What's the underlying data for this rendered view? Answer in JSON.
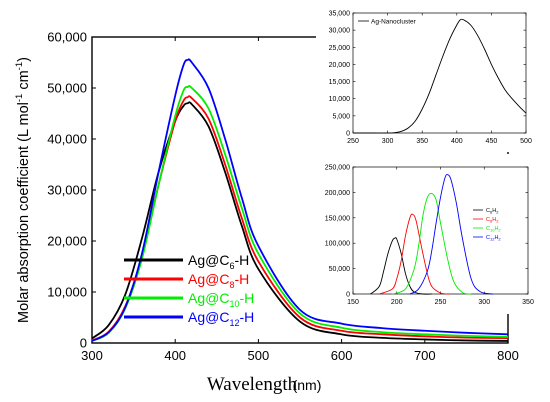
{
  "chart_data": [
    {
      "type": "line",
      "xlabel": "Wavelength",
      "xunit": "(nm)",
      "ylabel_parts": [
        "Molar absorption coefficient (L mol",
        "-1",
        " cm",
        "-1",
        ")"
      ],
      "xlim": [
        300,
        800
      ],
      "ylim": [
        0,
        60000
      ],
      "xticks": [
        "300",
        "400",
        "500",
        "600",
        "700",
        "800"
      ],
      "yticks": [
        "0",
        "10,000",
        "20,000",
        "30,000",
        "40,000",
        "50,000",
        "60,000"
      ],
      "legend": "bottom-left",
      "series": [
        {
          "name": "Ag@C6-H",
          "label_base": "Ag@C",
          "label_sub": "6",
          "label_suffix": "-H",
          "color": "#000000",
          "x": [
            300,
            320,
            340,
            360,
            380,
            400,
            410,
            415,
            420,
            440,
            460,
            480,
            500,
            550,
            600,
            650,
            700,
            750,
            800
          ],
          "y": [
            900,
            3500,
            9500,
            20500,
            33500,
            43500,
            46500,
            47000,
            46800,
            42500,
            33500,
            23000,
            14500,
            4200,
            1700,
            1000,
            700,
            500,
            400
          ]
        },
        {
          "name": "Ag@C8-H",
          "label_base": "Ag@C",
          "label_sub": "8",
          "label_suffix": "-H",
          "color": "#ff0000",
          "x": [
            300,
            320,
            340,
            360,
            380,
            400,
            410,
            415,
            420,
            440,
            460,
            480,
            500,
            550,
            600,
            650,
            700,
            750,
            800
          ],
          "y": [
            500,
            2200,
            7200,
            17000,
            31000,
            43500,
            47500,
            48200,
            48000,
            44000,
            35000,
            24500,
            16000,
            5000,
            2400,
            1700,
            1300,
            1050,
            950
          ]
        },
        {
          "name": "Ag@C10-H",
          "label_base": "Ag@C",
          "label_sub": "10",
          "label_suffix": "-H",
          "color": "#00ee00",
          "x": [
            300,
            320,
            340,
            360,
            380,
            400,
            410,
            415,
            420,
            440,
            460,
            480,
            500,
            550,
            600,
            650,
            700,
            750,
            800
          ],
          "y": [
            400,
            2000,
            6800,
            16500,
            31000,
            44500,
            49500,
            50200,
            50000,
            46000,
            37000,
            26500,
            17500,
            5800,
            3000,
            2100,
            1700,
            1400,
            1200
          ]
        },
        {
          "name": "Ag@C12-H",
          "label_base": "Ag@C",
          "label_sub": "12",
          "label_suffix": "-H",
          "color": "#0000ff",
          "x": [
            300,
            320,
            340,
            360,
            380,
            400,
            410,
            415,
            420,
            440,
            460,
            480,
            500,
            550,
            600,
            650,
            700,
            750,
            800
          ],
          "y": [
            400,
            2100,
            7000,
            17500,
            33500,
            48500,
            54500,
            55500,
            55000,
            50000,
            40000,
            28500,
            19000,
            6500,
            3800,
            2900,
            2400,
            2000,
            1700
          ]
        }
      ]
    },
    {
      "type": "line",
      "xlim": [
        250,
        500
      ],
      "ylim": [
        0,
        35000
      ],
      "xticks": [
        "250",
        "300",
        "350",
        "400",
        "450",
        "500"
      ],
      "yticks": [
        "0",
        "5,000",
        "10,000",
        "15,000",
        "20,000",
        "25,000",
        "30,000",
        "35,000"
      ],
      "legend": "top-left",
      "series": [
        {
          "name": "Ag-Nanocluster",
          "color": "#000000",
          "x": [
            250,
            280,
            300,
            310,
            320,
            330,
            340,
            350,
            360,
            370,
            380,
            390,
            400,
            405,
            410,
            420,
            430,
            440,
            450,
            460,
            470,
            480,
            490,
            500
          ],
          "y": [
            0,
            0,
            0,
            100,
            500,
            1500,
            3500,
            7000,
            11500,
            17000,
            22500,
            27500,
            31500,
            33000,
            33000,
            31500,
            28500,
            24500,
            20000,
            16000,
            12500,
            10000,
            7800,
            5800
          ]
        }
      ]
    },
    {
      "type": "line",
      "xlim": [
        150,
        350
      ],
      "ylim": [
        0,
        250000
      ],
      "xticks": [
        "150",
        "200",
        "250",
        "300",
        "350"
      ],
      "yticks": [
        "0",
        "50,000",
        "100,000",
        "150,000",
        "200,000",
        "250,000"
      ],
      "legend": "right",
      "series": [
        {
          "name": "C6H2",
          "label_base": "C",
          "label_sub": "6",
          "label_mid": "H",
          "label_sub2": "2",
          "color": "#000000",
          "x": [
            170,
            180,
            185,
            190,
            195,
            198,
            200,
            205,
            210,
            215,
            220,
            230,
            240
          ],
          "y": [
            0,
            15000,
            45000,
            80000,
            105000,
            110000,
            108000,
            80000,
            40000,
            15000,
            4000,
            0,
            0
          ]
        },
        {
          "name": "C8H2",
          "label_base": "C",
          "label_sub": "8",
          "label_mid": "H",
          "label_sub2": "2",
          "color": "#ff0000",
          "x": [
            180,
            195,
            200,
            205,
            210,
            215,
            218,
            222,
            228,
            235,
            240,
            250,
            260
          ],
          "y": [
            0,
            10000,
            30000,
            65000,
            115000,
            150000,
            157000,
            145000,
            95000,
            40000,
            15000,
            2000,
            0
          ]
        },
        {
          "name": "C10H2",
          "label_base": "C",
          "label_sub": "10",
          "label_mid": "H",
          "label_sub2": "2",
          "color": "#00ee00",
          "x": [
            195,
            210,
            220,
            225,
            230,
            235,
            240,
            245,
            250,
            258,
            265,
            275,
            285
          ],
          "y": [
            0,
            10000,
            50000,
            95000,
            155000,
            190000,
            198000,
            185000,
            140000,
            70000,
            25000,
            3000,
            0
          ]
        },
        {
          "name": "C12H2",
          "label_base": "C",
          "label_sub": "12",
          "label_mid": "H",
          "label_sub2": "2",
          "color": "#0000ff",
          "x": [
            215,
            225,
            235,
            240,
            245,
            250,
            255,
            258,
            262,
            268,
            275,
            285,
            295,
            310
          ],
          "y": [
            0,
            10000,
            45000,
            85000,
            140000,
            190000,
            228000,
            235000,
            225000,
            180000,
            110000,
            30000,
            5000,
            0
          ]
        }
      ]
    }
  ]
}
